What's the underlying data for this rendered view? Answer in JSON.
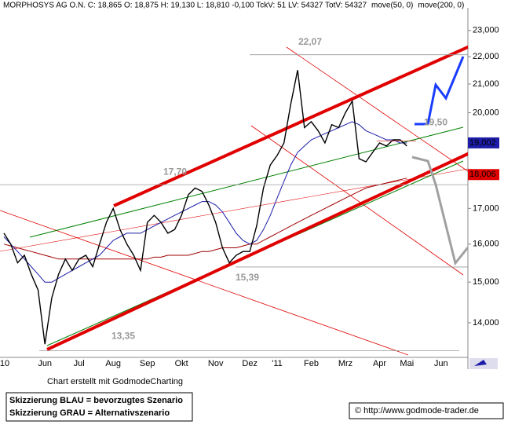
{
  "chart_data": {
    "type": "line",
    "title": "MORPHOSYS AG O.N. C: 18,865 O: 18,875 H: 19,130 L: 18,810 -0,100 TckV: 51 LV: 54327 TotV: 54327",
    "log": true,
    "ylim": [
      13.2,
      23.9
    ],
    "yticks": [
      {
        "value": 14,
        "label": "14,000"
      },
      {
        "value": 15,
        "label": "15,000"
      },
      {
        "value": 16,
        "label": "16,000"
      },
      {
        "value": 17,
        "label": "17,000"
      },
      {
        "value": 18,
        "label": "18,000"
      },
      {
        "value": 19,
        "label": "19,000"
      },
      {
        "value": 20,
        "label": "20,000"
      },
      {
        "value": 21,
        "label": "21,000"
      },
      {
        "value": 22,
        "label": "22,000"
      },
      {
        "value": 23,
        "label": "23,000"
      }
    ],
    "categories": [
      "'10",
      null,
      null,
      null,
      null,
      null,
      "Jun",
      null,
      null,
      null,
      null,
      "Jul",
      null,
      null,
      null,
      null,
      "Aug",
      null,
      null,
      null,
      null,
      "Sep",
      null,
      null,
      null,
      null,
      "Okt",
      null,
      null,
      null,
      null,
      "Nov",
      null,
      null,
      null,
      null,
      "Dez",
      null,
      null,
      null,
      "'11",
      null,
      null,
      null,
      null,
      "Feb",
      null,
      null,
      null,
      null,
      "Mrz",
      null,
      null,
      null,
      null,
      "Apr",
      null,
      null,
      null,
      "Mai",
      null,
      null,
      null,
      null,
      "Jun"
    ],
    "series": [
      {
        "color": "#000000",
        "values": [
          16.3,
          16.0,
          15.5,
          15.7,
          15.2,
          14.8,
          13.5,
          14.6,
          15.2,
          15.6,
          15.3,
          15.6,
          15.7,
          15.4,
          16.0,
          16.6,
          17.0,
          16.4,
          16.0,
          15.7,
          15.3,
          16.6,
          16.8,
          16.6,
          16.3,
          16.4,
          16.8,
          17.4,
          17.6,
          17.5,
          17.1,
          16.6,
          15.9,
          15.5,
          15.7,
          15.8,
          15.8,
          16.5,
          17.6,
          18.3,
          18.6,
          19.0,
          20.3,
          21.5,
          19.5,
          19.7,
          19.4,
          19.0,
          19.6,
          19.5,
          20.0,
          20.4,
          18.5,
          18.4,
          18.7,
          19.0,
          18.9,
          19.1,
          19.1,
          18.9,
          null,
          null,
          null,
          null,
          null
        ]
      },
      {
        "name": "move(50, 0)",
        "color": "#1c1ca8",
        "values": [
          16.2,
          16.0,
          15.8,
          15.6,
          15.4,
          15.2,
          15.0,
          15.0,
          15.1,
          15.2,
          15.3,
          15.4,
          15.5,
          15.6,
          15.7,
          15.9,
          16.1,
          16.2,
          16.3,
          16.3,
          16.3,
          16.4,
          16.5,
          16.6,
          16.7,
          16.8,
          16.9,
          17.0,
          17.1,
          17.2,
          17.2,
          17.1,
          16.9,
          16.6,
          16.3,
          16.1,
          16.0,
          16.1,
          16.4,
          16.8,
          17.3,
          17.8,
          18.3,
          18.7,
          18.9,
          19.1,
          19.2,
          19.3,
          19.4,
          19.5,
          19.6,
          19.7,
          19.6,
          19.4,
          19.3,
          19.2,
          19.1,
          19.1,
          19.0,
          19.0,
          null,
          null,
          null,
          null,
          null
        ]
      },
      {
        "name": "move(200, 0)",
        "color": "#a00000",
        "values": [
          16.0,
          15.95,
          15.9,
          15.85,
          15.8,
          15.75,
          15.7,
          15.65,
          15.6,
          15.6,
          15.6,
          15.6,
          15.6,
          15.6,
          15.6,
          15.6,
          15.6,
          15.6,
          15.6,
          15.6,
          15.6,
          15.6,
          15.65,
          15.65,
          15.7,
          15.7,
          15.7,
          15.7,
          15.75,
          15.8,
          15.8,
          15.85,
          15.9,
          15.9,
          15.9,
          15.95,
          16.0,
          16.0,
          16.1,
          16.2,
          16.3,
          16.4,
          16.5,
          16.6,
          16.7,
          16.8,
          16.9,
          17.0,
          17.1,
          17.2,
          17.3,
          17.4,
          17.5,
          17.6,
          17.65,
          17.7,
          17.75,
          17.8,
          17.85,
          17.9,
          null,
          null,
          null,
          null,
          null
        ]
      }
    ],
    "annotations": [
      {
        "label": "22,07",
        "value": 22.07
      },
      {
        "label": "19,50",
        "value": 19.5
      },
      {
        "label": "17,70",
        "value": 17.7
      },
      {
        "label": "15,39",
        "value": 15.39
      },
      {
        "label": "13,35",
        "value": 13.35
      }
    ],
    "price_tags": [
      {
        "label": "19,002",
        "value": 19.002,
        "color": "#1c1ca8"
      },
      {
        "label": "18,006",
        "value": 18.006,
        "color": "#e00000"
      }
    ],
    "credit": "Chart erstellt mit GodmodeCharting",
    "notes": [
      "Skizzierung BLAU = bevorzugtes Szenario",
      "Skizzierung GRAU = Alternativszenario"
    ],
    "source": "© http://www.godmode-trader.de"
  }
}
